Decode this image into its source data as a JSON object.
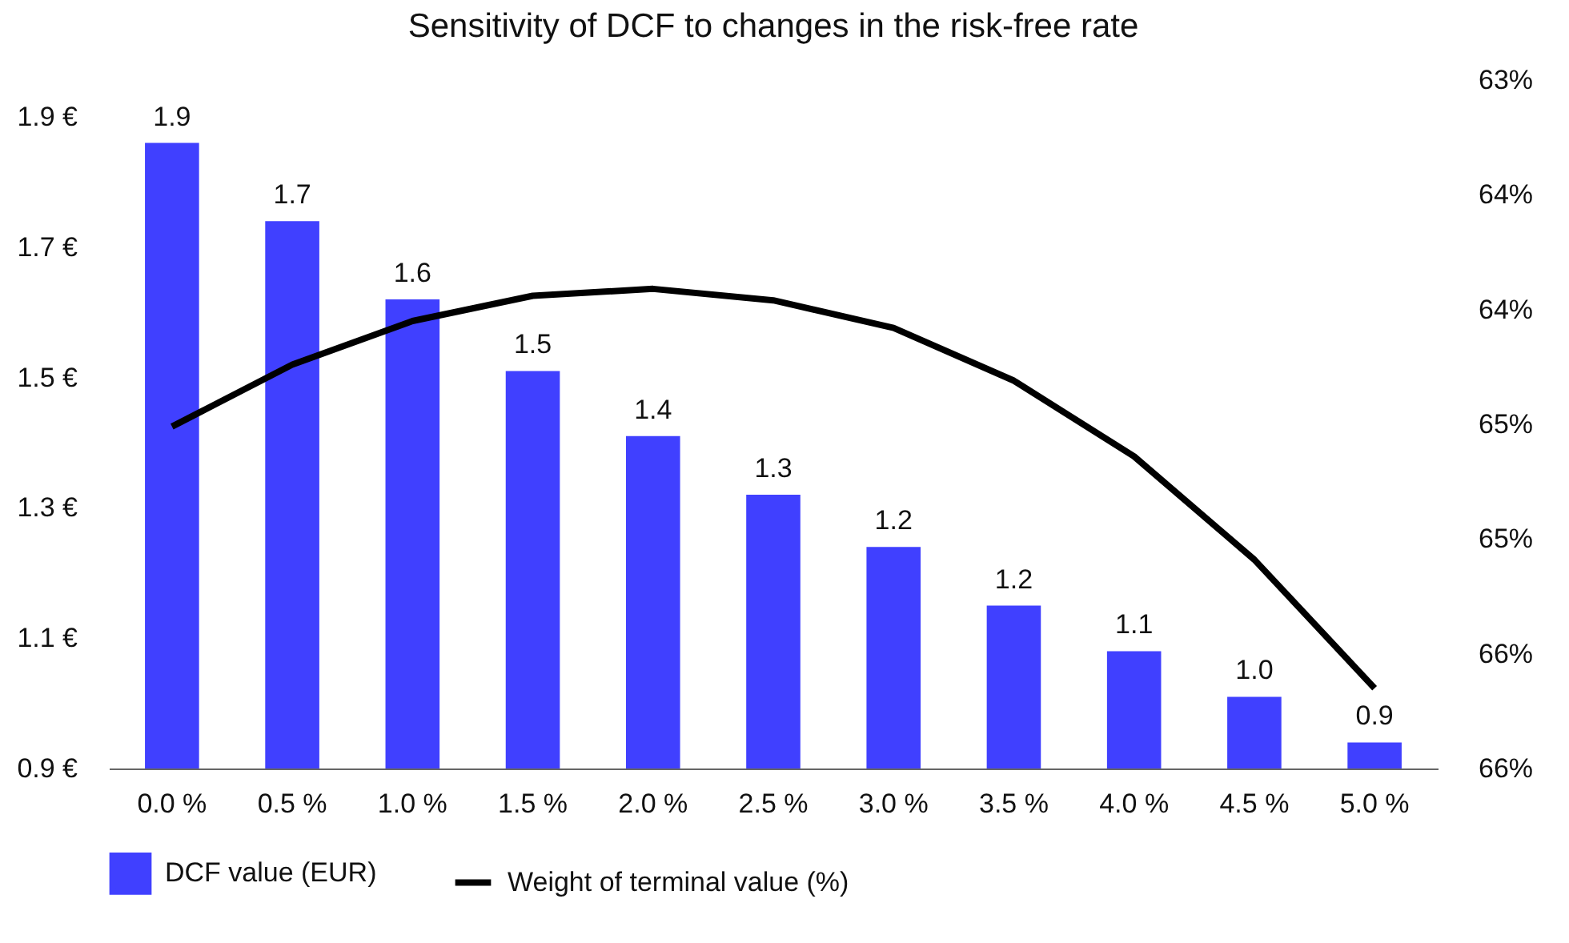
{
  "chart_data": {
    "type": "bar",
    "title": "Sensitivity of DCF to changes in the risk-free rate",
    "categories": [
      "0.0 %",
      "0.5 %",
      "1.0 %",
      "1.5 %",
      "2.0 %",
      "2.5 %",
      "3.0 %",
      "3.5 %",
      "4.0 %",
      "4.5 %",
      "5.0 %"
    ],
    "series": [
      {
        "name": "DCF value (EUR)",
        "color": "#4040ff",
        "values": [
          1.86,
          1.74,
          1.62,
          1.51,
          1.41,
          1.32,
          1.24,
          1.15,
          1.08,
          1.01,
          0.94
        ],
        "value_labels": [
          "1.9",
          "1.7",
          "1.6",
          "1.5",
          "1.4",
          "1.3",
          "1.2",
          "1.2",
          "1.1",
          "1.0",
          "0.9"
        ]
      },
      {
        "name": "Weight of terminal value (%)",
        "type": "line",
        "axis": "y2",
        "color": "#000000",
        "values": [
          64.51,
          64.24,
          64.05,
          63.94,
          63.91,
          63.96,
          64.08,
          64.31,
          64.64,
          65.09,
          65.65
        ]
      }
    ],
    "ylim": [
      0.9,
      1.9
    ],
    "yticks": [
      {
        "value": 0.9,
        "label": "0.9 €"
      },
      {
        "value": 1.1,
        "label": "1.1 €"
      },
      {
        "value": 1.3,
        "label": "1.3 €"
      },
      {
        "value": 1.5,
        "label": "1.5 €"
      },
      {
        "value": 1.7,
        "label": "1.7 €"
      },
      {
        "value": 1.9,
        "label": "1.9 €"
      }
    ],
    "y2lim": [
      66,
      63
    ],
    "y2ticks": [
      {
        "value": 63,
        "label": "63%"
      },
      {
        "value": 63.5,
        "label": "64%"
      },
      {
        "value": 64,
        "label": "64%"
      },
      {
        "value": 64.5,
        "label": "65%"
      },
      {
        "value": 65,
        "label": "65%"
      },
      {
        "value": 65.5,
        "label": "66%"
      },
      {
        "value": 66,
        "label": "66%"
      }
    ],
    "legend": "bottom",
    "grid": false,
    "marker": "none",
    "line_style": "solid"
  }
}
